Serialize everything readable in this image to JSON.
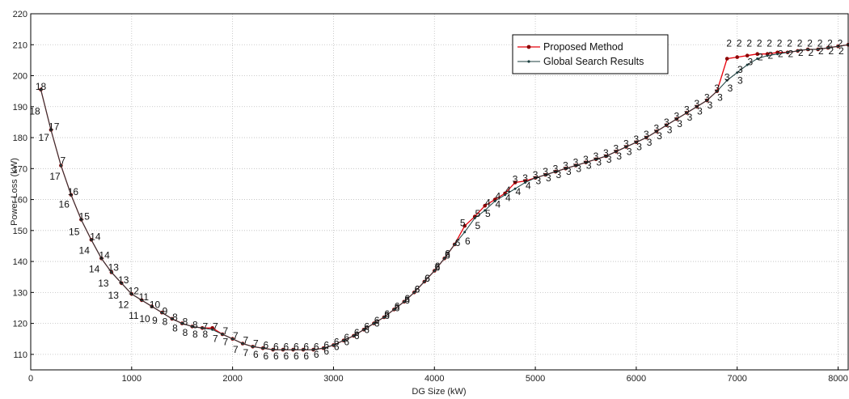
{
  "chart_data": {
    "type": "line",
    "xlabel": "DG Size (kW)",
    "ylabel": "Power Loss (kW)",
    "xlim": [
      0,
      8100
    ],
    "ylim": [
      105,
      220
    ],
    "xticks": [
      0,
      1000,
      2000,
      3000,
      4000,
      5000,
      6000,
      7000,
      8000
    ],
    "yticks": [
      110,
      120,
      130,
      140,
      150,
      160,
      170,
      180,
      190,
      200,
      210,
      220
    ],
    "grid": true,
    "legend_position": "top-right",
    "colors": {
      "proposed": "#e8000b",
      "global": "#1c3f3f",
      "proposed_marker": "#8b0000"
    },
    "series": [
      {
        "name": "Proposed Method",
        "x": [
          100,
          200,
          300,
          400,
          500,
          600,
          700,
          800,
          900,
          1000,
          1100,
          1200,
          1300,
          1400,
          1500,
          1600,
          1700,
          1800,
          1900,
          2000,
          2100,
          2200,
          2300,
          2400,
          2500,
          2600,
          2700,
          2800,
          2900,
          3000,
          3100,
          3200,
          3300,
          3400,
          3500,
          3600,
          3700,
          3800,
          3900,
          4000,
          4100,
          4200,
          4300,
          4400,
          4500,
          4600,
          4700,
          4800,
          4900,
          5000,
          5100,
          5200,
          5300,
          5400,
          5500,
          5600,
          5700,
          5800,
          5900,
          6000,
          6100,
          6200,
          6300,
          6400,
          6500,
          6600,
          6700,
          6800,
          6900,
          7000,
          7100,
          7200,
          7300,
          7400,
          7500,
          7600,
          7700,
          7800,
          7900,
          8000,
          8100
        ],
        "y": [
          195.5,
          182.5,
          171,
          161.5,
          153.5,
          147,
          141,
          136.5,
          133,
          129.5,
          127.5,
          125.5,
          123.5,
          121.5,
          120,
          119,
          118.5,
          118.5,
          116.5,
          115,
          113.5,
          112.5,
          112,
          111.5,
          111.5,
          111.5,
          111.5,
          111.5,
          112,
          113,
          114.5,
          116,
          118,
          120,
          122,
          124.5,
          127,
          130,
          133.5,
          137,
          141,
          145.5,
          151.5,
          154.5,
          158,
          160,
          162,
          165.5,
          166,
          167,
          168,
          169,
          170,
          171,
          172,
          173,
          174,
          175.5,
          177,
          178.5,
          180,
          182,
          184,
          186,
          188,
          190,
          192,
          195,
          205.5,
          206,
          206.5,
          207,
          207,
          207.5,
          207.5,
          208,
          208.5,
          208.5,
          209,
          209.5,
          210
        ]
      },
      {
        "name": "Global Search Results",
        "x": [
          100,
          200,
          300,
          400,
          500,
          600,
          700,
          800,
          900,
          1000,
          1100,
          1200,
          1300,
          1400,
          1500,
          1600,
          1700,
          1800,
          1900,
          2000,
          2100,
          2200,
          2300,
          2400,
          2500,
          2600,
          2700,
          2800,
          2900,
          3000,
          3100,
          3200,
          3300,
          3400,
          3500,
          3600,
          3700,
          3800,
          3900,
          4000,
          4100,
          4200,
          4300,
          4400,
          4500,
          4600,
          4700,
          4800,
          4900,
          5000,
          5100,
          5200,
          5300,
          5400,
          5500,
          5600,
          5700,
          5800,
          5900,
          6000,
          6100,
          6200,
          6300,
          6400,
          6500,
          6600,
          6700,
          6800,
          6900,
          7000,
          7100,
          7200,
          7300,
          7400,
          7500,
          7600,
          7700,
          7800,
          7900,
          8000,
          8100
        ],
        "y": [
          195.5,
          182.5,
          171,
          161.5,
          153.5,
          147,
          141,
          136.5,
          133,
          129.5,
          127.5,
          125.5,
          123.5,
          121.5,
          120,
          119,
          118.5,
          118,
          116.5,
          115,
          113.5,
          112.5,
          112,
          111.5,
          111.5,
          111.5,
          111.5,
          111.5,
          112,
          113,
          114.5,
          116,
          118,
          120,
          122,
          124.5,
          127,
          130,
          133.5,
          137,
          141,
          145.5,
          149.5,
          154,
          156.5,
          159.5,
          161.5,
          163.5,
          165.5,
          167,
          168,
          169,
          170,
          171,
          172,
          173,
          174,
          175.5,
          177,
          178.5,
          180,
          182,
          184,
          186,
          188,
          190,
          192,
          195,
          198.5,
          201,
          203.5,
          205.5,
          206.5,
          207,
          207.5,
          208,
          208.5,
          208.5,
          209,
          209.5,
          210
        ]
      }
    ],
    "annotations": [
      {
        "x": 100,
        "y": 196.5,
        "text": "18"
      },
      {
        "x": 40,
        "y": 188.5,
        "text": "18"
      },
      {
        "x": 230,
        "y": 183.5,
        "text": "17"
      },
      {
        "x": 130,
        "y": 180,
        "text": "17"
      },
      {
        "x": 320,
        "y": 172.5,
        "text": "7"
      },
      {
        "x": 240,
        "y": 167.5,
        "text": "17"
      },
      {
        "x": 420,
        "y": 162.5,
        "text": "16"
      },
      {
        "x": 330,
        "y": 158.5,
        "text": "16"
      },
      {
        "x": 530,
        "y": 154.5,
        "text": "15"
      },
      {
        "x": 430,
        "y": 149.5,
        "text": "15"
      },
      {
        "x": 640,
        "y": 148,
        "text": "14"
      },
      {
        "x": 530,
        "y": 143.5,
        "text": "14"
      },
      {
        "x": 730,
        "y": 142,
        "text": "14"
      },
      {
        "x": 630,
        "y": 137.5,
        "text": "14"
      },
      {
        "x": 820,
        "y": 138,
        "text": "13"
      },
      {
        "x": 720,
        "y": 133,
        "text": "13"
      },
      {
        "x": 920,
        "y": 134,
        "text": "13"
      },
      {
        "x": 820,
        "y": 129,
        "text": "13"
      },
      {
        "x": 1020,
        "y": 130.5,
        "text": "12"
      },
      {
        "x": 920,
        "y": 126,
        "text": "12"
      },
      {
        "x": 1120,
        "y": 128.5,
        "text": "11"
      },
      {
        "x": 1020,
        "y": 122.5,
        "text": "11"
      },
      {
        "x": 1230,
        "y": 126,
        "text": "10"
      },
      {
        "x": 1130,
        "y": 121.5,
        "text": "10"
      },
      {
        "x": 1330,
        "y": 124,
        "text": "9"
      },
      {
        "x": 1230,
        "y": 121,
        "text": "9"
      },
      {
        "x": 1430,
        "y": 122,
        "text": "8"
      },
      {
        "x": 1330,
        "y": 120.5,
        "text": "8"
      },
      {
        "x": 1530,
        "y": 120.5,
        "text": "8"
      },
      {
        "x": 1430,
        "y": 118.5,
        "text": "8"
      },
      {
        "x": 1630,
        "y": 119.5,
        "text": "8"
      },
      {
        "x": 1530,
        "y": 117,
        "text": "8"
      },
      {
        "x": 1730,
        "y": 119,
        "text": "7"
      },
      {
        "x": 1630,
        "y": 116.5,
        "text": "8"
      },
      {
        "x": 1830,
        "y": 119,
        "text": "7"
      },
      {
        "x": 1730,
        "y": 116.5,
        "text": "8"
      },
      {
        "x": 1930,
        "y": 117.5,
        "text": "7"
      },
      {
        "x": 1830,
        "y": 115,
        "text": "7"
      },
      {
        "x": 2030,
        "y": 116,
        "text": "7"
      },
      {
        "x": 1930,
        "y": 114,
        "text": "7"
      },
      {
        "x": 2130,
        "y": 114.5,
        "text": "7"
      },
      {
        "x": 2030,
        "y": 111.5,
        "text": "7"
      },
      {
        "x": 2230,
        "y": 113.5,
        "text": "7"
      },
      {
        "x": 2130,
        "y": 110.5,
        "text": "7"
      },
      {
        "x": 2330,
        "y": 113,
        "text": "6"
      },
      {
        "x": 2230,
        "y": 110,
        "text": "6"
      },
      {
        "x": 2430,
        "y": 112.5,
        "text": "6"
      },
      {
        "x": 2330,
        "y": 109.5,
        "text": "6"
      },
      {
        "x": 2530,
        "y": 112.5,
        "text": "6"
      },
      {
        "x": 2430,
        "y": 109.5,
        "text": "6"
      },
      {
        "x": 2630,
        "y": 112.5,
        "text": "6"
      },
      {
        "x": 2530,
        "y": 109.5,
        "text": "6"
      },
      {
        "x": 2730,
        "y": 112.5,
        "text": "6"
      },
      {
        "x": 2630,
        "y": 109.5,
        "text": "6"
      },
      {
        "x": 2830,
        "y": 112.5,
        "text": "6"
      },
      {
        "x": 2730,
        "y": 109.5,
        "text": "6"
      },
      {
        "x": 2930,
        "y": 113,
        "text": "6"
      },
      {
        "x": 2830,
        "y": 110,
        "text": "6"
      },
      {
        "x": 3030,
        "y": 114,
        "text": "6"
      },
      {
        "x": 2930,
        "y": 111,
        "text": "6"
      },
      {
        "x": 3130,
        "y": 115.5,
        "text": "6"
      },
      {
        "x": 3030,
        "y": 112.5,
        "text": "6"
      },
      {
        "x": 3230,
        "y": 117,
        "text": "6"
      },
      {
        "x": 3130,
        "y": 114,
        "text": "6"
      },
      {
        "x": 3330,
        "y": 119,
        "text": "6"
      },
      {
        "x": 3230,
        "y": 116,
        "text": "6"
      },
      {
        "x": 3430,
        "y": 121,
        "text": "6"
      },
      {
        "x": 3330,
        "y": 118,
        "text": "6"
      },
      {
        "x": 3530,
        "y": 123,
        "text": "6"
      },
      {
        "x": 3430,
        "y": 120,
        "text": "6"
      },
      {
        "x": 3630,
        "y": 125.5,
        "text": "6"
      },
      {
        "x": 3530,
        "y": 122.5,
        "text": "6"
      },
      {
        "x": 3730,
        "y": 128,
        "text": "6"
      },
      {
        "x": 3630,
        "y": 125,
        "text": "6"
      },
      {
        "x": 3830,
        "y": 131,
        "text": "6"
      },
      {
        "x": 3730,
        "y": 127.5,
        "text": "6"
      },
      {
        "x": 3930,
        "y": 134.5,
        "text": "6"
      },
      {
        "x": 3830,
        "y": 131,
        "text": "6"
      },
      {
        "x": 4030,
        "y": 138,
        "text": "6"
      },
      {
        "x": 3930,
        "y": 134.5,
        "text": "6"
      },
      {
        "x": 4130,
        "y": 142,
        "text": "6"
      },
      {
        "x": 4030,
        "y": 138.5,
        "text": "6"
      },
      {
        "x": 4230,
        "y": 146,
        "text": "6"
      },
      {
        "x": 4130,
        "y": 142.5,
        "text": "6"
      },
      {
        "x": 4280,
        "y": 152.5,
        "text": "5"
      },
      {
        "x": 4330,
        "y": 146.5,
        "text": "6"
      },
      {
        "x": 4430,
        "y": 155.5,
        "text": "5"
      },
      {
        "x": 4430,
        "y": 151.5,
        "text": "5"
      },
      {
        "x": 4530,
        "y": 159,
        "text": "4"
      },
      {
        "x": 4530,
        "y": 155.5,
        "text": "5"
      },
      {
        "x": 4630,
        "y": 161,
        "text": "4"
      },
      {
        "x": 4630,
        "y": 158.5,
        "text": "4"
      },
      {
        "x": 4730,
        "y": 163,
        "text": "4"
      },
      {
        "x": 4730,
        "y": 160.5,
        "text": "4"
      },
      {
        "x": 4800,
        "y": 166.5,
        "text": "3"
      },
      {
        "x": 4830,
        "y": 162.5,
        "text": "4"
      },
      {
        "x": 4900,
        "y": 167,
        "text": "3"
      },
      {
        "x": 4930,
        "y": 164.5,
        "text": "4"
      },
      {
        "x": 5000,
        "y": 168,
        "text": "3"
      },
      {
        "x": 5030,
        "y": 166,
        "text": "3"
      },
      {
        "x": 5100,
        "y": 169,
        "text": "3"
      },
      {
        "x": 5130,
        "y": 167,
        "text": "3"
      },
      {
        "x": 5200,
        "y": 170,
        "text": "3"
      },
      {
        "x": 5230,
        "y": 168,
        "text": "3"
      },
      {
        "x": 5300,
        "y": 171,
        "text": "3"
      },
      {
        "x": 5330,
        "y": 169,
        "text": "3"
      },
      {
        "x": 5400,
        "y": 172,
        "text": "3"
      },
      {
        "x": 5430,
        "y": 170,
        "text": "3"
      },
      {
        "x": 5500,
        "y": 173,
        "text": "3"
      },
      {
        "x": 5530,
        "y": 171,
        "text": "3"
      },
      {
        "x": 5600,
        "y": 174,
        "text": "3"
      },
      {
        "x": 5630,
        "y": 172,
        "text": "3"
      },
      {
        "x": 5700,
        "y": 175,
        "text": "3"
      },
      {
        "x": 5730,
        "y": 173,
        "text": "3"
      },
      {
        "x": 5800,
        "y": 176.5,
        "text": "3"
      },
      {
        "x": 5830,
        "y": 174,
        "text": "3"
      },
      {
        "x": 5900,
        "y": 178,
        "text": "3"
      },
      {
        "x": 5930,
        "y": 175.5,
        "text": "3"
      },
      {
        "x": 6000,
        "y": 179.5,
        "text": "3"
      },
      {
        "x": 6030,
        "y": 177,
        "text": "3"
      },
      {
        "x": 6100,
        "y": 181,
        "text": "3"
      },
      {
        "x": 6130,
        "y": 178.5,
        "text": "3"
      },
      {
        "x": 6200,
        "y": 183,
        "text": "3"
      },
      {
        "x": 6230,
        "y": 180.5,
        "text": "3"
      },
      {
        "x": 6300,
        "y": 185,
        "text": "3"
      },
      {
        "x": 6330,
        "y": 182.5,
        "text": "3"
      },
      {
        "x": 6400,
        "y": 187,
        "text": "3"
      },
      {
        "x": 6430,
        "y": 184.5,
        "text": "3"
      },
      {
        "x": 6500,
        "y": 189,
        "text": "3"
      },
      {
        "x": 6530,
        "y": 186.5,
        "text": "3"
      },
      {
        "x": 6600,
        "y": 191,
        "text": "3"
      },
      {
        "x": 6630,
        "y": 188.5,
        "text": "3"
      },
      {
        "x": 6700,
        "y": 193,
        "text": "3"
      },
      {
        "x": 6730,
        "y": 190.5,
        "text": "3"
      },
      {
        "x": 6800,
        "y": 196,
        "text": "3"
      },
      {
        "x": 6830,
        "y": 193,
        "text": "3"
      },
      {
        "x": 6900,
        "y": 199.5,
        "text": "3"
      },
      {
        "x": 6930,
        "y": 196,
        "text": "3"
      },
      {
        "x": 7030,
        "y": 202,
        "text": "3"
      },
      {
        "x": 7030,
        "y": 198.5,
        "text": "3"
      },
      {
        "x": 6920,
        "y": 210.5,
        "text": "2"
      },
      {
        "x": 7130,
        "y": 204.5,
        "text": "3"
      },
      {
        "x": 7020,
        "y": 210.5,
        "text": "2"
      },
      {
        "x": 7230,
        "y": 206,
        "text": "2"
      },
      {
        "x": 7120,
        "y": 210.5,
        "text": "2"
      },
      {
        "x": 7330,
        "y": 206.5,
        "text": "2"
      },
      {
        "x": 7220,
        "y": 210.5,
        "text": "2"
      },
      {
        "x": 7430,
        "y": 207,
        "text": "2"
      },
      {
        "x": 7320,
        "y": 210.5,
        "text": "2"
      },
      {
        "x": 7530,
        "y": 207,
        "text": "2"
      },
      {
        "x": 7420,
        "y": 210.5,
        "text": "2"
      },
      {
        "x": 7630,
        "y": 207.5,
        "text": "2"
      },
      {
        "x": 7520,
        "y": 210.5,
        "text": "2"
      },
      {
        "x": 7730,
        "y": 207.5,
        "text": "2"
      },
      {
        "x": 7620,
        "y": 210.5,
        "text": "2"
      },
      {
        "x": 7830,
        "y": 208,
        "text": "2"
      },
      {
        "x": 7720,
        "y": 210.5,
        "text": "2"
      },
      {
        "x": 7930,
        "y": 208,
        "text": "2"
      },
      {
        "x": 7820,
        "y": 210.5,
        "text": "2"
      },
      {
        "x": 8030,
        "y": 208,
        "text": "2"
      },
      {
        "x": 7920,
        "y": 210.5,
        "text": "2"
      },
      {
        "x": 8020,
        "y": 210.5,
        "text": "2"
      }
    ]
  }
}
